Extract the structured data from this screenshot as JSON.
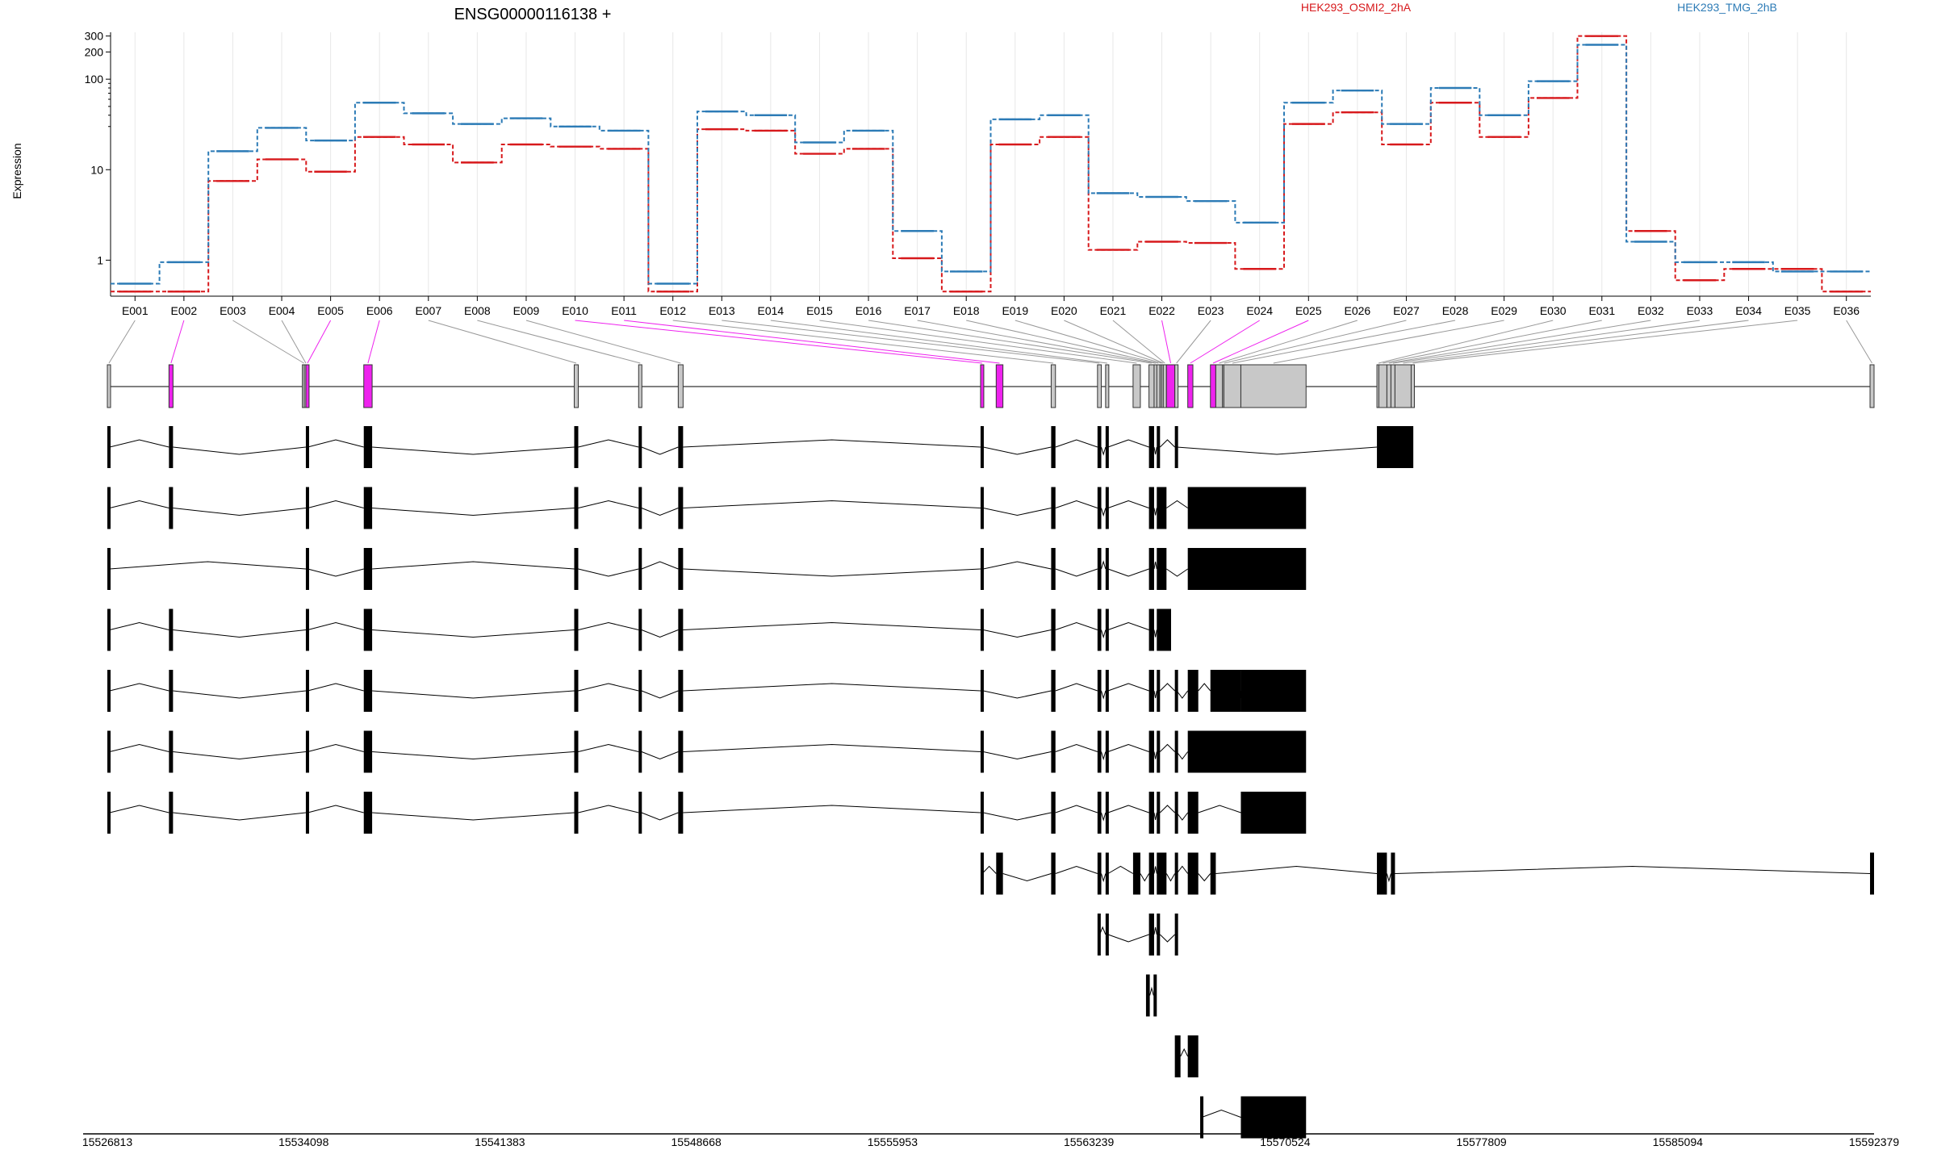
{
  "chart_data": {
    "type": "line",
    "title": "ENSG00000116138 +",
    "ylabel": "Expression",
    "y_scale": "log",
    "y_ticks": [
      1,
      10,
      100,
      200,
      300
    ],
    "ylim": [
      0.4,
      330
    ],
    "grid": "vertical, light",
    "legend_placement": "top",
    "colors": {
      "exon_highlight": "#ee22ee",
      "exon_default": "#c8c8c8",
      "transcript_exon": "#000000"
    },
    "categories": [
      "E001",
      "E002",
      "E003",
      "E004",
      "E005",
      "E006",
      "E007",
      "E008",
      "E009",
      "E010",
      "E011",
      "E012",
      "E013",
      "E014",
      "E015",
      "E016",
      "E017",
      "E018",
      "E019",
      "E020",
      "E021",
      "E022",
      "E023",
      "E024",
      "E025",
      "E026",
      "E027",
      "E028",
      "E029",
      "E030",
      "E031",
      "E032",
      "E033",
      "E034",
      "E035",
      "E036"
    ],
    "series": [
      {
        "name": "HEK293_OSMI2_2hA",
        "color": "#d7191c",
        "values": [
          0.45,
          0.45,
          7.5,
          13,
          9.5,
          23,
          19,
          12,
          19,
          18,
          17,
          0.45,
          28,
          27,
          15,
          17,
          1.05,
          0.45,
          19,
          23,
          1.3,
          1.6,
          1.55,
          0.8,
          32,
          43,
          19,
          55,
          23,
          62,
          300,
          2.1,
          0.6,
          0.8,
          0.8,
          0.45
        ]
      },
      {
        "name": "HEK293_TMG_2hB",
        "color": "#2c7bb6",
        "values": [
          0.55,
          0.95,
          16,
          29,
          21,
          55,
          42,
          32,
          37,
          30,
          27,
          0.55,
          44,
          40,
          20,
          27,
          2.1,
          0.75,
          36,
          40,
          5.5,
          5,
          4.5,
          2.6,
          55,
          75,
          32,
          80,
          40,
          95,
          240,
          1.6,
          0.95,
          0.95,
          0.75,
          0.75
        ]
      }
    ],
    "exon_model": {
      "highlighted": [
        "E002",
        "E005",
        "E006",
        "E010",
        "E011",
        "E022",
        "E024",
        "E025"
      ],
      "exons": [
        [
          "E001",
          15526813,
          15526900
        ],
        [
          "E002",
          15529100,
          15529250
        ],
        [
          "E003",
          15534050,
          15534120
        ],
        [
          "E004",
          15534120,
          15534130
        ],
        [
          "E005",
          15534180,
          15534250
        ],
        [
          "E006",
          15536330,
          15536640
        ],
        [
          "E007",
          15544140,
          15544290
        ],
        [
          "E008",
          15546530,
          15546640
        ],
        [
          "E009",
          15548000,
          15548180
        ],
        [
          "E010",
          15559220,
          15559320
        ],
        [
          "E011",
          15559800,
          15560050
        ],
        [
          "E012",
          15561840,
          15562000
        ],
        [
          "E013",
          15563560,
          15563700
        ],
        [
          "E014",
          15563860,
          15563950
        ],
        [
          "E015",
          15564880,
          15565150
        ],
        [
          "E016",
          15565470,
          15565660
        ],
        [
          "E017",
          15565660,
          15565760
        ],
        [
          "E018",
          15565760,
          15565880
        ],
        [
          "E019",
          15565880,
          15565940
        ],
        [
          "E020",
          15565940,
          15566000
        ],
        [
          "E021",
          15566000,
          15566120
        ],
        [
          "E022",
          15566120,
          15566430
        ],
        [
          "E023",
          15566430,
          15566500
        ],
        [
          "E024",
          15566910,
          15567100
        ],
        [
          "E025",
          15567750,
          15567950
        ],
        [
          "E026",
          15567950,
          15568200
        ],
        [
          "E027",
          15568200,
          15568250
        ],
        [
          "E028",
          15568250,
          15568880
        ],
        [
          "E029",
          15568880,
          15571300
        ],
        [
          "E030",
          15573930,
          15574000
        ],
        [
          "E031",
          15574000,
          15574300
        ],
        [
          "E032",
          15574300,
          15574450
        ],
        [
          "E033",
          15574450,
          15574600
        ],
        [
          "E034",
          15574600,
          15575200
        ],
        [
          "E035",
          15575200,
          15575280
        ],
        [
          "E036",
          15592230,
          15592379
        ]
      ]
    },
    "transcripts": [
      [
        [
          15526813,
          15526900
        ],
        [
          15529100,
          15529250
        ],
        [
          15534180,
          15534250
        ],
        [
          15536330,
          15536640
        ],
        [
          15544140,
          15544290
        ],
        [
          15546530,
          15546640
        ],
        [
          15548000,
          15548180
        ],
        [
          15559220,
          15559320
        ],
        [
          15561840,
          15562000
        ],
        [
          15563560,
          15563700
        ],
        [
          15563860,
          15563950
        ],
        [
          15565470,
          15565660
        ],
        [
          15565760,
          15565880
        ],
        [
          15566430,
          15566500
        ],
        [
          15573930,
          15575280
        ]
      ],
      [
        [
          15526813,
          15526900
        ],
        [
          15529100,
          15529250
        ],
        [
          15534180,
          15534250
        ],
        [
          15536330,
          15536640
        ],
        [
          15544140,
          15544290
        ],
        [
          15546530,
          15546640
        ],
        [
          15548000,
          15548180
        ],
        [
          15559220,
          15559320
        ],
        [
          15561840,
          15562000
        ],
        [
          15563560,
          15563700
        ],
        [
          15563860,
          15563950
        ],
        [
          15565470,
          15565660
        ],
        [
          15565760,
          15566120
        ],
        [
          15566910,
          15571300
        ]
      ],
      [
        [
          15526813,
          15526900
        ],
        [
          15534180,
          15534250
        ],
        [
          15536330,
          15536640
        ],
        [
          15544140,
          15544290
        ],
        [
          15546530,
          15546640
        ],
        [
          15548000,
          15548180
        ],
        [
          15559220,
          15559320
        ],
        [
          15561840,
          15562000
        ],
        [
          15563560,
          15563700
        ],
        [
          15563860,
          15563950
        ],
        [
          15565470,
          15565660
        ],
        [
          15565760,
          15566120
        ],
        [
          15566910,
          15571300
        ]
      ],
      [
        [
          15526813,
          15526900
        ],
        [
          15529100,
          15529250
        ],
        [
          15534180,
          15534250
        ],
        [
          15536330,
          15536640
        ],
        [
          15544140,
          15544290
        ],
        [
          15546530,
          15546640
        ],
        [
          15548000,
          15548180
        ],
        [
          15559220,
          15559320
        ],
        [
          15561840,
          15562000
        ],
        [
          15563560,
          15563700
        ],
        [
          15563860,
          15563950
        ],
        [
          15565470,
          15565660
        ],
        [
          15565760,
          15566290
        ]
      ],
      [
        [
          15526813,
          15526900
        ],
        [
          15529100,
          15529250
        ],
        [
          15534180,
          15534250
        ],
        [
          15536330,
          15536640
        ],
        [
          15544140,
          15544290
        ],
        [
          15546530,
          15546640
        ],
        [
          15548000,
          15548180
        ],
        [
          15559220,
          15559320
        ],
        [
          15561840,
          15562000
        ],
        [
          15563560,
          15563700
        ],
        [
          15563860,
          15563950
        ],
        [
          15565470,
          15565660
        ],
        [
          15565760,
          15565880
        ],
        [
          15566430,
          15566500
        ],
        [
          15566910,
          15567300
        ],
        [
          15567750,
          15568880
        ],
        [
          15568880,
          15571300
        ]
      ],
      [
        [
          15526813,
          15526900
        ],
        [
          15529100,
          15529250
        ],
        [
          15534180,
          15534250
        ],
        [
          15536330,
          15536640
        ],
        [
          15544140,
          15544290
        ],
        [
          15546530,
          15546640
        ],
        [
          15548000,
          15548180
        ],
        [
          15559220,
          15559320
        ],
        [
          15561840,
          15562000
        ],
        [
          15563560,
          15563700
        ],
        [
          15563860,
          15563950
        ],
        [
          15565470,
          15565660
        ],
        [
          15565760,
          15565880
        ],
        [
          15566430,
          15566500
        ],
        [
          15566910,
          15571300
        ]
      ],
      [
        [
          15526813,
          15526900
        ],
        [
          15529100,
          15529250
        ],
        [
          15534180,
          15534250
        ],
        [
          15536330,
          15536640
        ],
        [
          15544140,
          15544290
        ],
        [
          15546530,
          15546640
        ],
        [
          15548000,
          15548180
        ],
        [
          15559220,
          15559320
        ],
        [
          15561840,
          15562000
        ],
        [
          15563560,
          15563700
        ],
        [
          15563860,
          15563950
        ],
        [
          15565470,
          15565660
        ],
        [
          15565760,
          15565880
        ],
        [
          15566430,
          15566500
        ],
        [
          15566910,
          15567300
        ],
        [
          15568880,
          15571300
        ]
      ],
      [
        [
          15559220,
          15559280
        ],
        [
          15559800,
          15560050
        ],
        [
          15561840,
          15562000
        ],
        [
          15563560,
          15563700
        ],
        [
          15563860,
          15563950
        ],
        [
          15564880,
          15565150
        ],
        [
          15565470,
          15565660
        ],
        [
          15565760,
          15566120
        ],
        [
          15566430,
          15566500
        ],
        [
          15566910,
          15567300
        ],
        [
          15567750,
          15567950
        ],
        [
          15573930,
          15574300
        ],
        [
          15574450,
          15574600
        ],
        [
          15592230,
          15592379
        ]
      ],
      [
        [
          15563560,
          15563640
        ],
        [
          15563860,
          15563950
        ],
        [
          15565470,
          15565660
        ],
        [
          15565760,
          15565880
        ],
        [
          15566430,
          15566500
        ]
      ],
      [
        [
          15565360,
          15565500
        ],
        [
          15565640,
          15565760
        ]
      ],
      [
        [
          15566430,
          15566640
        ],
        [
          15566910,
          15567300
        ]
      ],
      [
        [
          15567370,
          15567430
        ],
        [
          15568880,
          15571300
        ]
      ]
    ],
    "x_axis": {
      "range": [
        15526813,
        15592379
      ],
      "tick_values": [
        15526813,
        15534098,
        15541383,
        15548668,
        15555953,
        15563239,
        15570524,
        15577809,
        15585094,
        15592379
      ],
      "tick_labels": [
        "15526813",
        "15534098",
        "15541383",
        "15548668",
        "15555953",
        "15563239",
        "15570524",
        "15577809",
        "15585094",
        "15592379"
      ]
    }
  }
}
